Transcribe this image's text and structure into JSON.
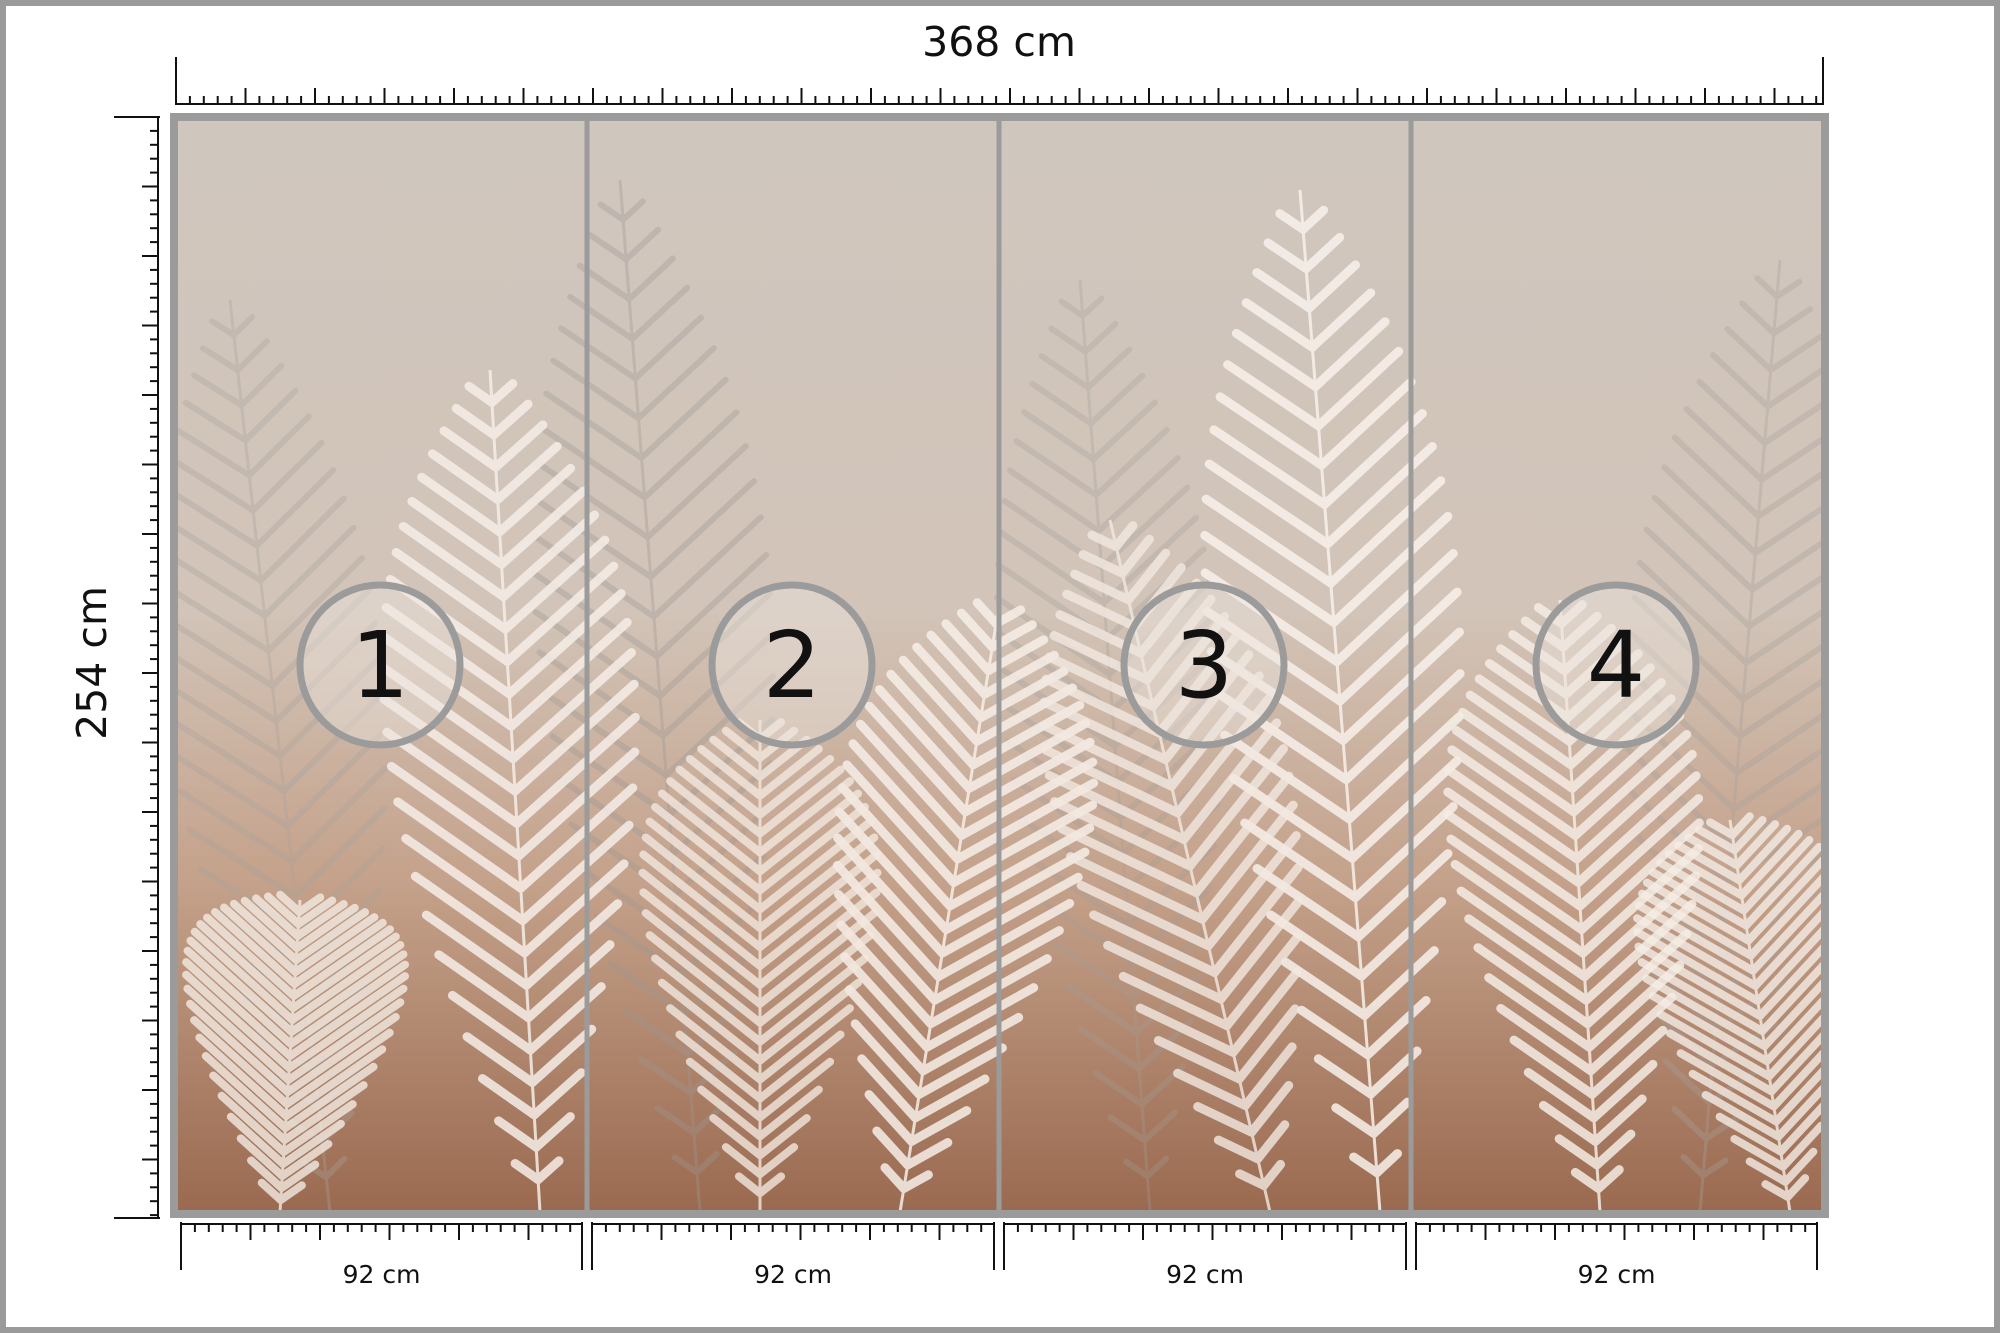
{
  "width_label": "368 cm",
  "height_label": "254 cm",
  "panels": [
    {
      "number": "1",
      "width_label": "92 cm"
    },
    {
      "number": "2",
      "width_label": "92 cm"
    },
    {
      "number": "3",
      "width_label": "92 cm"
    },
    {
      "number": "4",
      "width_label": "92 cm"
    }
  ]
}
